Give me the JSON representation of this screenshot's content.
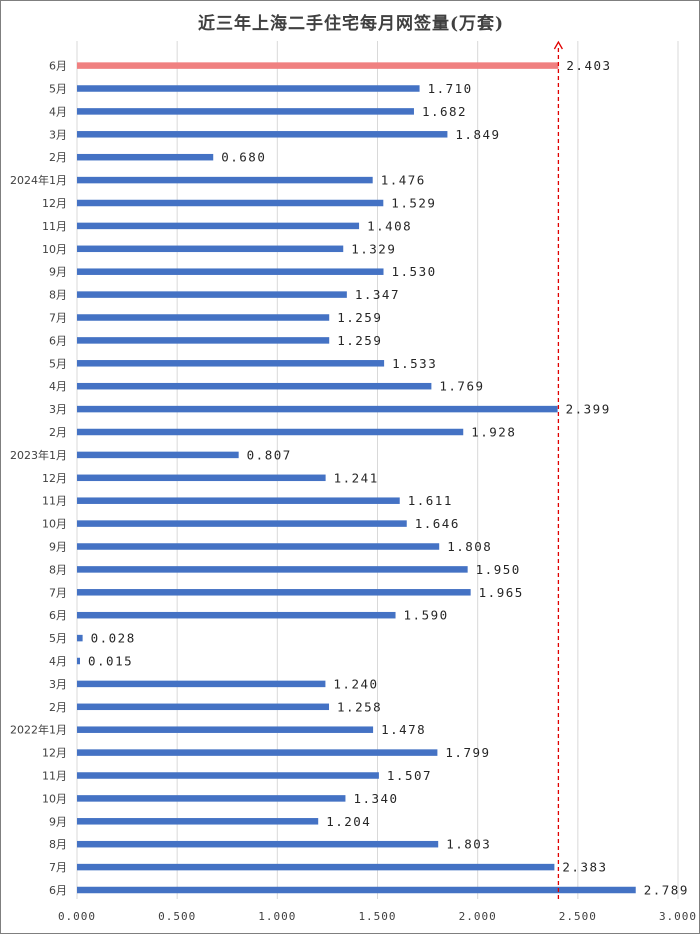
{
  "chart_data": {
    "type": "bar",
    "orientation": "horizontal",
    "title": "近三年上海二手住宅每月网签量(万套)",
    "xlabel": "",
    "ylabel": "",
    "xlim": [
      0,
      3
    ],
    "x_ticks": [
      "0.000",
      "0.500",
      "1.000",
      "1.500",
      "2.000",
      "2.500",
      "3.000"
    ],
    "grid": "vertical",
    "categories": [
      "6月",
      "5月",
      "4月",
      "3月",
      "2月",
      "2024年1月",
      "12月",
      "11月",
      "10月",
      "9月",
      "8月",
      "7月",
      "6月",
      "5月",
      "4月",
      "3月",
      "2月",
      "2023年1月",
      "12月",
      "11月",
      "10月",
      "9月",
      "8月",
      "7月",
      "6月",
      "5月",
      "4月",
      "3月",
      "2月",
      "2022年1月",
      "12月",
      "11月",
      "10月",
      "9月",
      "8月",
      "7月",
      "6月"
    ],
    "values": [
      2.403,
      1.71,
      1.682,
      1.849,
      0.68,
      1.476,
      1.529,
      1.408,
      1.329,
      1.53,
      1.347,
      1.259,
      1.259,
      1.533,
      1.769,
      2.399,
      1.928,
      0.807,
      1.241,
      1.611,
      1.646,
      1.808,
      1.95,
      1.965,
      1.59,
      0.028,
      0.015,
      1.24,
      1.258,
      1.478,
      1.799,
      1.507,
      1.34,
      1.204,
      1.803,
      2.383,
      2.789
    ],
    "labels": [
      "2.403",
      "1.710",
      "1.682",
      "1.849",
      "0.680",
      "1.476",
      "1.529",
      "1.408",
      "1.329",
      "1.530",
      "1.347",
      "1.259",
      "1.259",
      "1.533",
      "1.769",
      "2.399",
      "1.928",
      "0.807",
      "1.241",
      "1.611",
      "1.646",
      "1.808",
      "1.950",
      "1.965",
      "1.590",
      "0.028",
      "0.015",
      "1.240",
      "1.258",
      "1.478",
      "1.799",
      "1.507",
      "1.340",
      "1.204",
      "1.803",
      "2.383",
      "2.789"
    ],
    "highlight_index": 0,
    "reference_line": {
      "value": 2.403,
      "style": "dashed-arrow"
    },
    "colors": {
      "bar": "#4472c4",
      "highlight": "#f08080",
      "reference": "#e00000",
      "grid": "#d9d9d9"
    }
  }
}
